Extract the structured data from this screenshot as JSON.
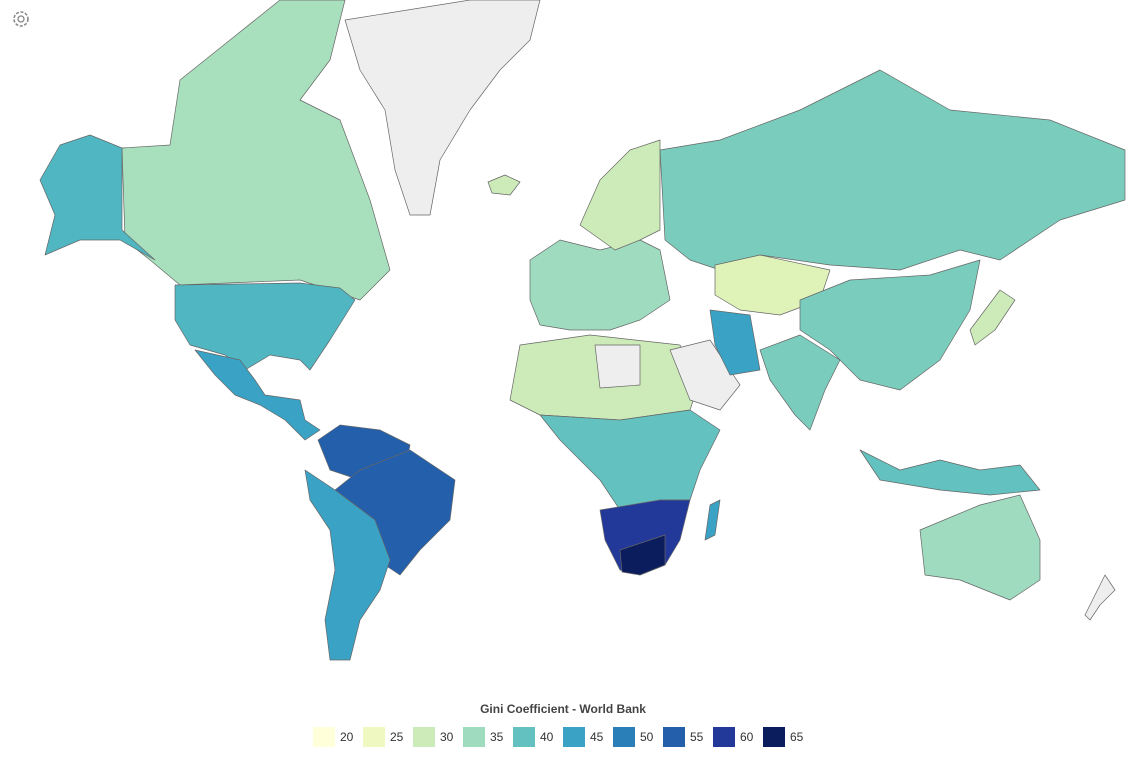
{
  "legend": {
    "title": "Gini Coefficient - World Bank",
    "items": [
      {
        "value": 20,
        "color": "#ffffd9"
      },
      {
        "value": 25,
        "color": "#eef8c0"
      },
      {
        "value": 30,
        "color": "#cdebb9"
      },
      {
        "value": 35,
        "color": "#9fdbbf"
      },
      {
        "value": 40,
        "color": "#63c1bf"
      },
      {
        "value": 45,
        "color": "#3aa3c5"
      },
      {
        "value": 50,
        "color": "#2a7fb8"
      },
      {
        "value": 55,
        "color": "#245fac"
      },
      {
        "value": 60,
        "color": "#23399a"
      },
      {
        "value": 65,
        "color": "#0b1d5c"
      }
    ]
  }
}
